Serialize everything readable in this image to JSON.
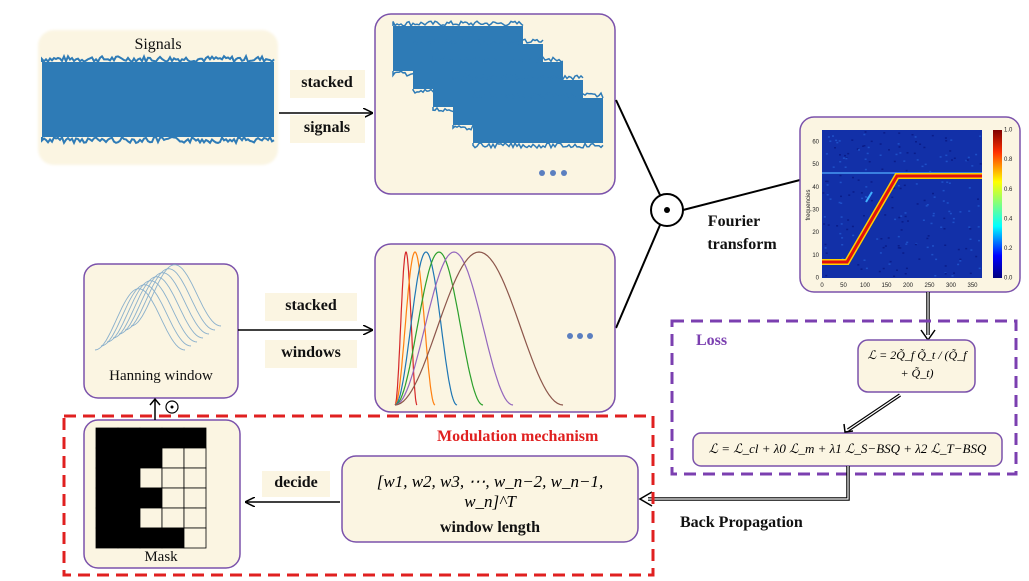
{
  "signals_title": "Signals",
  "stacked_signals_line1": "stacked",
  "stacked_signals_line2": "signals",
  "fourier_line1": "Fourier",
  "fourier_line2": "transform",
  "stacked_windows_line1": "stacked",
  "stacked_windows_line2": "windows",
  "hanning_title": "Hanning window",
  "loss_title": "Loss",
  "loss_formula_1": "ℒ = 2Q̃_f Q̃_t / (Q̃_f + Q̃_t)",
  "loss_formula_2": "ℒ = ℒ_cl + λ0 ℒ_m + λ1 ℒ_S−BSQ + λ2 ℒ_T−BSQ",
  "modulation_title": "Modulation mechanism",
  "decide_label": "decide",
  "window_vector": "[w1, w2, w3, ⋯, w_n−2, w_n−1, w_n]^T",
  "window_length_label": "window length",
  "back_prop_label": "Back Propagation",
  "mask_title": "Mask",
  "odot_symbol": "⊙",
  "spectrogram": {
    "ylabel": "frequencies",
    "x_ticks": [
      "0",
      "50",
      "100",
      "150",
      "200",
      "250",
      "300",
      "350"
    ],
    "y_ticks": [
      "0",
      "10",
      "20",
      "30",
      "40",
      "50",
      "60"
    ],
    "colorbar_ticks": [
      "0.0",
      "0.2",
      "0.4",
      "0.6",
      "0.8",
      "1.0"
    ]
  },
  "colors": {
    "signal_blue": "#2e7bb6",
    "box_fill": "#fbf5e2",
    "box_border": "#7b52ab",
    "modulation_red": "#e02020",
    "loss_purple": "#7b3fb0"
  }
}
